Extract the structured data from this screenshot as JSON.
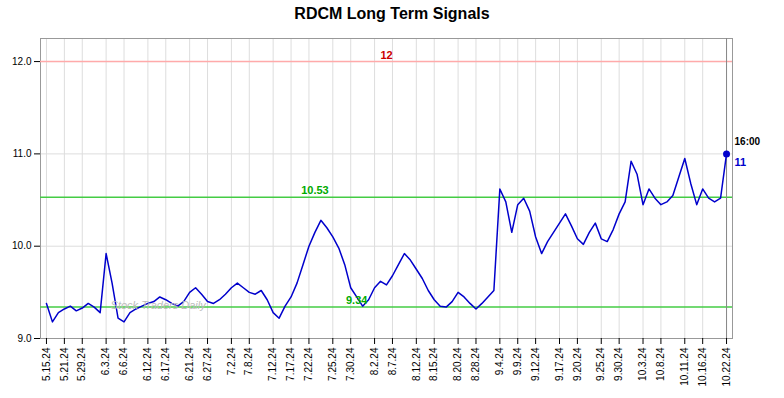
{
  "chart_data": {
    "type": "line",
    "title": "RDCM Long Term Signals",
    "color": "#0000cc",
    "grid": true,
    "categories": [
      "5.15.24",
      null,
      null,
      "5.21.24",
      null,
      null,
      "5.29.24",
      null,
      null,
      null,
      "6.3.24",
      null,
      null,
      "6.6.24",
      null,
      null,
      null,
      "6.12.24",
      null,
      null,
      "6.17.24",
      null,
      null,
      null,
      "6.21.24",
      null,
      null,
      "6.27.24",
      null,
      null,
      null,
      "7.2.24",
      null,
      null,
      "7.8.24",
      null,
      null,
      null,
      "7.12.24",
      null,
      null,
      "7.17.24",
      null,
      null,
      "7.22.24",
      null,
      null,
      null,
      "7.25.24",
      null,
      null,
      "7.30.24",
      null,
      null,
      null,
      "8.2.24",
      null,
      null,
      "8.7.24",
      null,
      null,
      null,
      "8.12.24",
      null,
      null,
      "8.15.24",
      null,
      null,
      null,
      "8.20.24",
      null,
      null,
      "8.28.24",
      null,
      null,
      null,
      "9.4.24",
      null,
      null,
      "9.9.24",
      null,
      null,
      "9.12.24",
      null,
      null,
      null,
      "9.17.24",
      null,
      null,
      "9.20.24",
      null,
      null,
      null,
      "9.25.24",
      null,
      null,
      "9.30.24",
      null,
      null,
      null,
      "10.3.24",
      null,
      null,
      "10.8.24",
      null,
      null,
      null,
      "10.11.24",
      null,
      null,
      "10.16.24",
      null,
      null,
      null,
      "10.22.24"
    ],
    "values": [
      9.38,
      9.18,
      9.28,
      9.32,
      9.35,
      9.3,
      9.33,
      9.38,
      9.34,
      9.28,
      9.92,
      9.6,
      9.22,
      9.18,
      9.28,
      9.32,
      9.35,
      9.38,
      9.4,
      9.45,
      9.42,
      9.38,
      9.35,
      9.4,
      9.5,
      9.55,
      9.48,
      9.4,
      9.38,
      9.42,
      9.48,
      9.55,
      9.6,
      9.55,
      9.5,
      9.48,
      9.52,
      9.42,
      9.28,
      9.22,
      9.35,
      9.45,
      9.6,
      9.8,
      10.0,
      10.15,
      10.28,
      10.2,
      10.1,
      9.98,
      9.8,
      9.55,
      9.45,
      9.35,
      9.42,
      9.55,
      9.62,
      9.58,
      9.68,
      9.8,
      9.92,
      9.85,
      9.75,
      9.65,
      9.52,
      9.42,
      9.35,
      9.34,
      9.4,
      9.5,
      9.45,
      9.38,
      9.32,
      9.38,
      9.45,
      9.52,
      10.62,
      10.48,
      10.15,
      10.45,
      10.52,
      10.38,
      10.1,
      9.92,
      10.05,
      10.15,
      10.25,
      10.35,
      10.22,
      10.08,
      10.02,
      10.15,
      10.25,
      10.08,
      10.05,
      10.18,
      10.35,
      10.48,
      10.92,
      10.78,
      10.45,
      10.62,
      10.52,
      10.45,
      10.48,
      10.55,
      10.75,
      10.95,
      10.68,
      10.45,
      10.62,
      10.52,
      10.48,
      10.52,
      11.0
    ],
    "ylim": [
      9,
      12.25
    ],
    "yticks": [
      9,
      10,
      11,
      12
    ],
    "reference_lines": [
      {
        "value": 12,
        "color": "#ffaaaa"
      },
      {
        "value": 10.53,
        "color": "#44cc44"
      },
      {
        "value": 9.34,
        "color": "#44cc44"
      }
    ],
    "vertical_lines": [
      {
        "x": 114,
        "color": "#888888"
      }
    ],
    "annotations": [
      {
        "text": "12",
        "y": 12,
        "color": "#cc0000"
      },
      {
        "text": "10.53",
        "x": 45,
        "y": 10.53,
        "color": "#00aa00"
      },
      {
        "text": "9.34",
        "x": 52,
        "y": 9.34,
        "color": "#00aa00"
      }
    ],
    "points": [
      {
        "x": 114,
        "y": 11.0,
        "color": "#0000cc",
        "label": "16:00",
        "value_label": "11"
      }
    ],
    "watermark": {
      "text": "Stock Traders Daily",
      "color": "#bbbbbb"
    }
  }
}
